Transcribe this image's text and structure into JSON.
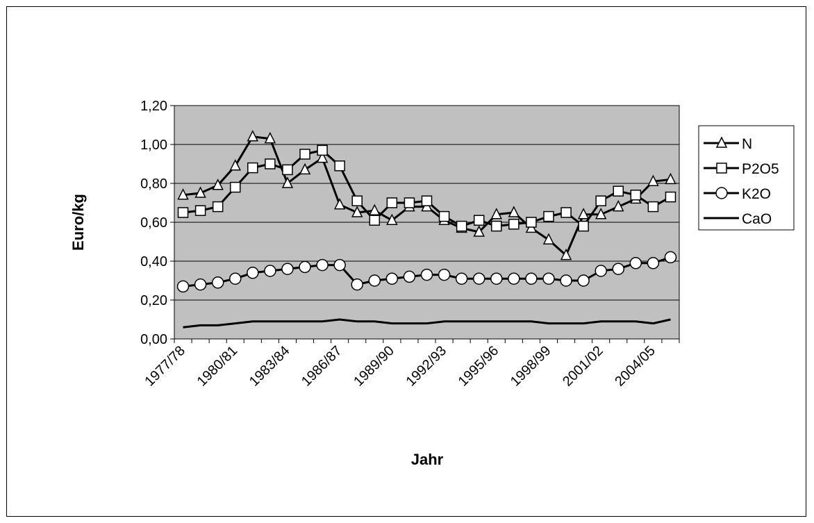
{
  "chart_data": {
    "type": "line",
    "title": "",
    "xlabel": "Jahr",
    "ylabel": "Euro/kg",
    "ylim": [
      0,
      1.2
    ],
    "ytick_step": 0.2,
    "ytick_labels": [
      "0,00",
      "0,20",
      "0,40",
      "0,60",
      "0,80",
      "1,00",
      "1,20"
    ],
    "plot_background": "#c0c0c0",
    "grid": true,
    "legend_position": "right",
    "categories": [
      "1977/78",
      "1978/79",
      "1979/80",
      "1980/81",
      "1981/82",
      "1982/83",
      "1983/84",
      "1984/85",
      "1985/86",
      "1986/87",
      "1987/88",
      "1988/89",
      "1989/90",
      "1990/91",
      "1991/92",
      "1992/93",
      "1993/94",
      "1994/95",
      "1995/96",
      "1996/97",
      "1997/98",
      "1998/99",
      "1999/00",
      "2000/01",
      "2001/02",
      "2002/03",
      "2003/04",
      "2004/05",
      "2005/06"
    ],
    "tick_label_every": 3,
    "series": [
      {
        "name": "N",
        "marker": "triangle",
        "values": [
          0.74,
          0.75,
          0.79,
          0.89,
          1.04,
          1.03,
          0.8,
          0.87,
          0.93,
          0.69,
          0.65,
          0.66,
          0.61,
          0.68,
          0.68,
          0.61,
          0.57,
          0.55,
          0.64,
          0.65,
          0.57,
          0.51,
          0.43,
          0.64,
          0.64,
          0.68,
          0.72,
          0.81,
          0.82
        ]
      },
      {
        "name": "P2O5",
        "marker": "square",
        "values": [
          0.65,
          0.66,
          0.68,
          0.78,
          0.88,
          0.9,
          0.87,
          0.95,
          0.97,
          0.89,
          0.71,
          0.61,
          0.7,
          0.7,
          0.71,
          0.63,
          0.58,
          0.61,
          0.58,
          0.59,
          0.6,
          0.63,
          0.65,
          0.58,
          0.71,
          0.76,
          0.74,
          0.68,
          0.73
        ]
      },
      {
        "name": "K2O",
        "marker": "circle",
        "values": [
          0.27,
          0.28,
          0.29,
          0.31,
          0.34,
          0.35,
          0.36,
          0.37,
          0.38,
          0.38,
          0.28,
          0.3,
          0.31,
          0.32,
          0.33,
          0.33,
          0.31,
          0.31,
          0.31,
          0.31,
          0.31,
          0.31,
          0.3,
          0.3,
          0.35,
          0.36,
          0.39,
          0.39,
          0.42
        ]
      },
      {
        "name": "CaO",
        "marker": "none",
        "values": [
          0.06,
          0.07,
          0.07,
          0.08,
          0.09,
          0.09,
          0.09,
          0.09,
          0.09,
          0.1,
          0.09,
          0.09,
          0.08,
          0.08,
          0.08,
          0.09,
          0.09,
          0.09,
          0.09,
          0.09,
          0.09,
          0.08,
          0.08,
          0.08,
          0.09,
          0.09,
          0.09,
          0.08,
          0.1
        ]
      }
    ]
  }
}
